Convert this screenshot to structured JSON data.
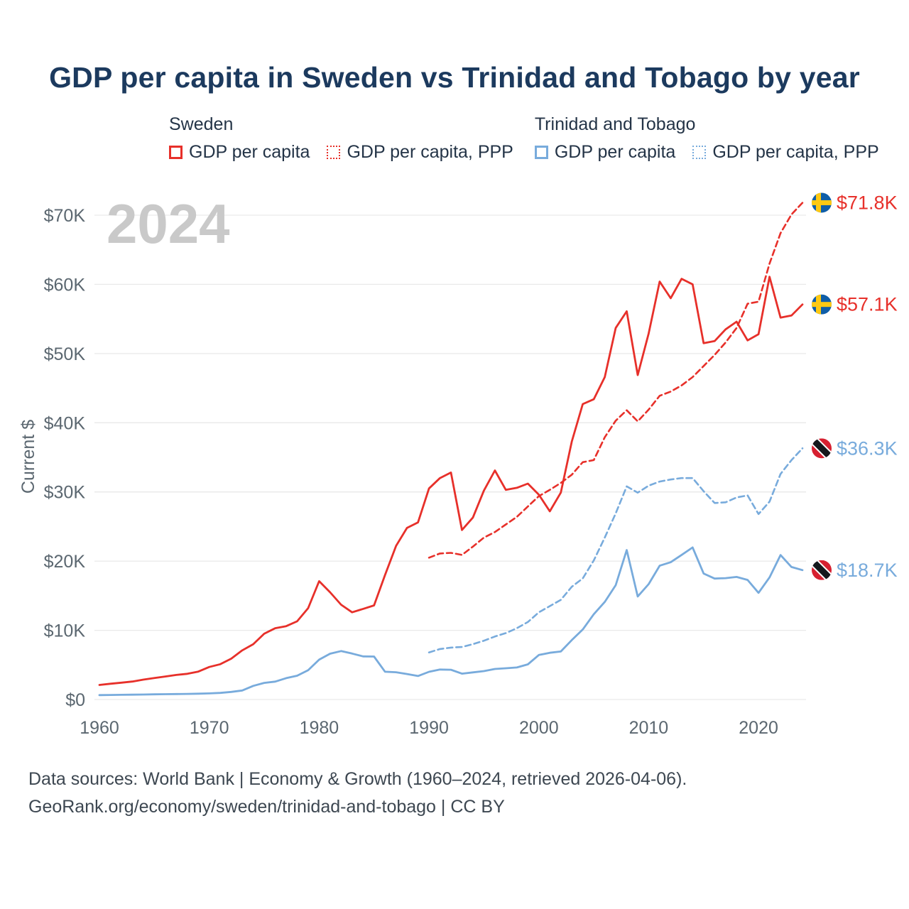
{
  "title": "GDP per capita in Sweden vs Trinidad and Tobago by year",
  "watermark": "2024",
  "legend": {
    "groups": [
      {
        "title": "Sweden",
        "items": [
          {
            "label": "GDP per capita",
            "line_style": "solid",
            "color": "#e7302a"
          },
          {
            "label": "GDP per capita, PPP",
            "line_style": "dotted",
            "color": "#e7302a"
          }
        ]
      },
      {
        "title": "Trinidad and Tobago",
        "items": [
          {
            "label": "GDP per capita",
            "line_style": "solid",
            "color": "#78abdc"
          },
          {
            "label": "GDP per capita, PPP",
            "line_style": "dotted",
            "color": "#78abdc"
          }
        ]
      }
    ]
  },
  "chart_data": {
    "type": "line",
    "title": "GDP per capita in Sweden vs Trinidad and Tobago by year",
    "xlabel": "",
    "ylabel": "Current $",
    "watermark": "2024",
    "grid": "horizontal",
    "legend_position": "top",
    "xlim": [
      1960,
      2024
    ],
    "ylim": [
      0,
      70000
    ],
    "x_ticks": [
      1960,
      1970,
      1980,
      1990,
      2000,
      2010,
      2020
    ],
    "y_ticks": [
      {
        "value": 0,
        "label": "$0"
      },
      {
        "value": 10000,
        "label": "$10K"
      },
      {
        "value": 20000,
        "label": "$20K"
      },
      {
        "value": 30000,
        "label": "$30K"
      },
      {
        "value": 40000,
        "label": "$40K"
      },
      {
        "value": 50000,
        "label": "$50K"
      },
      {
        "value": 60000,
        "label": "$60K"
      },
      {
        "value": 70000,
        "label": "$70K"
      }
    ],
    "flags": {
      "sweden": {
        "base": "#0f5ea8",
        "cross": "#fdc913"
      },
      "trinidad_and_tobago": {
        "base": "#d62030",
        "stripe": "#15181c",
        "stripe_border": "#ffffff"
      }
    },
    "series": [
      {
        "id": "sweden-gdp",
        "name": "Sweden GDP per capita",
        "color": "#e7302a",
        "dash": "solid",
        "flag": "sweden",
        "end_label": "$57.1K",
        "x_start": 1960,
        "x_step": 1,
        "values": [
          2100,
          2280,
          2430,
          2600,
          2870,
          3110,
          3330,
          3550,
          3720,
          4030,
          4700,
          5100,
          5900,
          7100,
          8000,
          9500,
          10300,
          10600,
          11300,
          13200,
          17100,
          15500,
          13700,
          12600,
          13100,
          13600,
          18000,
          22200,
          24800,
          25600,
          30500,
          32000,
          32800,
          24500,
          26300,
          30200,
          33100,
          30300,
          30600,
          31200,
          29600,
          27200,
          29900,
          37300,
          42700,
          43400,
          46600,
          53700,
          56100,
          46900,
          52900,
          60400,
          58000,
          60800,
          60000,
          51500,
          51800,
          53500,
          54600,
          51900,
          52800,
          61100,
          55200,
          55500,
          57100
        ]
      },
      {
        "id": "sweden-gdp-ppp",
        "name": "Sweden GDP per capita, PPP",
        "color": "#e7302a",
        "dash": "dashed",
        "flag": "sweden",
        "end_label": "$71.8K",
        "x_start": 1990,
        "x_step": 1,
        "values": [
          20500,
          21100,
          21200,
          20900,
          22100,
          23400,
          24200,
          25300,
          26400,
          27900,
          29400,
          30300,
          31300,
          32500,
          34300,
          34600,
          37900,
          40300,
          41800,
          40200,
          41900,
          43900,
          44500,
          45400,
          46600,
          48200,
          49800,
          51600,
          53700,
          57200,
          57500,
          63000,
          67400,
          70100,
          71800
        ]
      },
      {
        "id": "trinidad-tobago-gdp",
        "name": "Trinidad and Tobago GDP per capita",
        "color": "#78abdc",
        "dash": "solid",
        "flag": "trinidad_and_tobago",
        "end_label": "$18.7K",
        "x_start": 1960,
        "x_step": 1,
        "values": [
          640,
          660,
          680,
          700,
          720,
          750,
          770,
          790,
          810,
          840,
          880,
          950,
          1100,
          1300,
          1970,
          2400,
          2590,
          3090,
          3440,
          4230,
          5760,
          6620,
          7000,
          6640,
          6230,
          6210,
          4010,
          3940,
          3680,
          3400,
          4000,
          4330,
          4300,
          3740,
          3920,
          4110,
          4410,
          4520,
          4630,
          5080,
          6440,
          6750,
          6940,
          8590,
          10120,
          12330,
          14100,
          16530,
          21600,
          14890,
          16680,
          19340,
          19840,
          20900,
          21970,
          18210,
          17480,
          17540,
          17720,
          17280,
          15420,
          17640,
          20880,
          19150,
          18700
        ]
      },
      {
        "id": "trinidad-tobago-gdp-ppp",
        "name": "Trinidad and Tobago GDP per capita, PPP",
        "color": "#78abdc",
        "dash": "dashed",
        "flag": "trinidad_and_tobago",
        "end_label": "$36.3K",
        "x_start": 1990,
        "x_step": 1,
        "values": [
          6800,
          7300,
          7500,
          7600,
          8000,
          8500,
          9100,
          9600,
          10300,
          11200,
          12600,
          13500,
          14400,
          16300,
          17500,
          20100,
          23400,
          26900,
          30800,
          29900,
          30900,
          31500,
          31800,
          32000,
          32000,
          30100,
          28400,
          28500,
          29200,
          29500,
          26800,
          28600,
          32600,
          34600,
          36300
        ]
      }
    ]
  },
  "footer": {
    "line1": "Data sources: World Bank | Economy & Growth (1960–2024, retrieved 2026-04-06).",
    "line2": "GeoRank.org/economy/sweden/trinidad-and-tobago | CC BY"
  }
}
